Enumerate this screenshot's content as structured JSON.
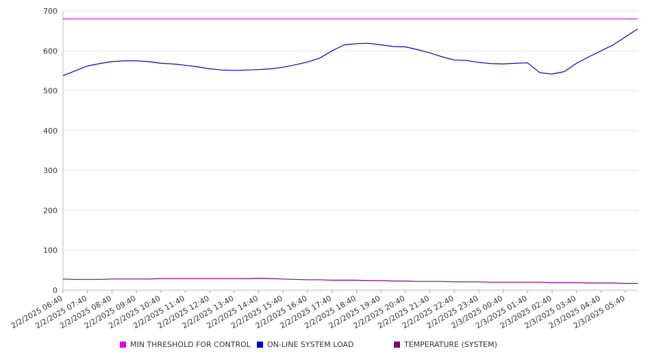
{
  "chart_data": {
    "type": "line",
    "title": "",
    "xlabel": "",
    "ylabel": "",
    "ylim": [
      0,
      700
    ],
    "yticks": [
      0,
      100,
      200,
      300,
      400,
      500,
      600,
      700
    ],
    "grid": true,
    "legend_position": "bottom",
    "x_tick_labels": [
      "2/2/2025 06:40",
      "2/2/2025 07:40",
      "2/2/2025 08:40",
      "2/2/2025 09:40",
      "2/2/2025 10:40",
      "2/2/2025 11:40",
      "2/2/2025 12:40",
      "2/2/2025 13:40",
      "2/2/2025 14:40",
      "2/2/2025 15:40",
      "2/2/2025 16:40",
      "2/2/2025 17:40",
      "2/2/2025 18:40",
      "2/2/2025 19:40",
      "2/2/2025 20:40",
      "2/2/2025 21:40",
      "2/2/2025 22:40",
      "2/2/2025 23:40",
      "2/3/2025 00:40",
      "2/3/2025 01:40",
      "2/3/2025 02:40",
      "2/3/2025 03:40",
      "2/3/2025 04:40",
      "2/3/2025 05:40"
    ],
    "x": [
      "2/2/2025 06:40",
      "2/2/2025 07:10",
      "2/2/2025 07:40",
      "2/2/2025 08:10",
      "2/2/2025 08:40",
      "2/2/2025 09:10",
      "2/2/2025 09:40",
      "2/2/2025 10:10",
      "2/2/2025 10:40",
      "2/2/2025 11:10",
      "2/2/2025 11:40",
      "2/2/2025 12:10",
      "2/2/2025 12:40",
      "2/2/2025 13:10",
      "2/2/2025 13:40",
      "2/2/2025 14:10",
      "2/2/2025 14:40",
      "2/2/2025 15:10",
      "2/2/2025 15:40",
      "2/2/2025 16:10",
      "2/2/2025 16:40",
      "2/2/2025 17:10",
      "2/2/2025 17:40",
      "2/2/2025 18:10",
      "2/2/2025 18:40",
      "2/2/2025 19:10",
      "2/2/2025 19:40",
      "2/2/2025 20:10",
      "2/2/2025 20:40",
      "2/2/2025 21:10",
      "2/2/2025 21:40",
      "2/2/2025 22:10",
      "2/2/2025 22:40",
      "2/2/2025 23:10",
      "2/2/2025 23:40",
      "2/3/2025 00:10",
      "2/3/2025 00:40",
      "2/3/2025 01:10",
      "2/3/2025 01:40",
      "2/3/2025 02:10",
      "2/3/2025 02:40",
      "2/3/2025 03:10",
      "2/3/2025 03:40",
      "2/3/2025 04:10",
      "2/3/2025 04:40",
      "2/3/2025 05:10",
      "2/3/2025 05:40",
      "2/3/2025 06:10"
    ],
    "series": [
      {
        "name": "MIN THRESHOLD FOR CONTROL",
        "color": "#e000e0",
        "values": [
          680,
          680,
          680,
          680,
          680,
          680,
          680,
          680,
          680,
          680,
          680,
          680,
          680,
          680,
          680,
          680,
          680,
          680,
          680,
          680,
          680,
          680,
          680,
          680,
          680,
          680,
          680,
          680,
          680,
          680,
          680,
          680,
          680,
          680,
          680,
          680,
          680,
          680,
          680,
          680,
          680,
          680,
          680,
          680,
          680,
          680,
          680,
          680
        ]
      },
      {
        "name": "ON-LINE SYSTEM LOAD",
        "color": "#0000cc",
        "values": [
          538,
          550,
          562,
          568,
          573,
          575,
          575,
          573,
          569,
          567,
          564,
          560,
          555,
          552,
          551,
          552,
          553,
          555,
          559,
          565,
          572,
          582,
          600,
          615,
          618,
          619,
          615,
          611,
          610,
          603,
          595,
          585,
          577,
          576,
          571,
          568,
          567,
          569,
          570,
          545,
          542,
          548,
          569,
          585,
          600,
          615,
          635,
          655
        ]
      },
      {
        "name": "TEMPERATURE (SYSTEM)",
        "color": "#800080",
        "values": [
          28,
          27,
          27,
          27,
          28,
          28,
          28,
          28,
          29,
          29,
          29,
          29,
          29,
          29,
          29,
          29,
          30,
          29,
          28,
          27,
          26,
          26,
          25,
          25,
          25,
          24,
          24,
          23,
          23,
          22,
          22,
          22,
          21,
          21,
          21,
          20,
          20,
          20,
          20,
          20,
          19,
          19,
          19,
          18,
          18,
          18,
          17,
          17
        ]
      }
    ]
  }
}
